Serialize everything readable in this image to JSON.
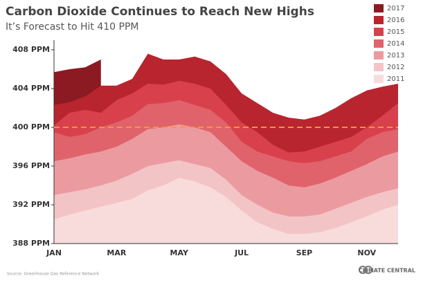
{
  "chart_data": {
    "type": "area",
    "title": "Carbon Dioxide Continues to Reach New Highs",
    "subtitle": "It’s Forecast to Hit 410 PPM",
    "source": "Source: Greenhouse Gas Reference Network",
    "credit": "CLIMATE CENTRAL",
    "categories": [
      "JAN",
      null,
      null,
      null,
      "MAR",
      null,
      null,
      null,
      "MAY",
      null,
      null,
      null,
      "JUL",
      null,
      null,
      null,
      "SEP",
      null,
      null,
      null,
      "NOV",
      null,
      null
    ],
    "series": [
      {
        "name": "2017",
        "color": "#8b1a22",
        "values": [
          405.7,
          406,
          406.2,
          407,
          null,
          null,
          null,
          null,
          null,
          null,
          null,
          null,
          null,
          null,
          null,
          null,
          null,
          null,
          null,
          null,
          null,
          null,
          null
        ]
      },
      {
        "name": "2016",
        "color": "#b8252f",
        "values": [
          402.3,
          402.6,
          403.2,
          404.3,
          404.3,
          405,
          407.6,
          407,
          407,
          407.3,
          406.8,
          405.5,
          403.5,
          402.5,
          401.5,
          401,
          400.8,
          401.2,
          402,
          403,
          403.8,
          404.2,
          404.5
        ]
      },
      {
        "name": "2015",
        "color": "#d8414c",
        "values": [
          400.2,
          401.5,
          401.8,
          401.5,
          402.8,
          403.5,
          404.5,
          404.4,
          404.8,
          404.5,
          404,
          402.3,
          400.5,
          399.5,
          398.2,
          397.4,
          397.5,
          398,
          398.5,
          399,
          400,
          401.2,
          402.5
        ]
      },
      {
        "name": "2014",
        "color": "#e0636b",
        "values": [
          399.5,
          399,
          399.3,
          400,
          400.5,
          401.2,
          402.4,
          402.5,
          402.8,
          402.3,
          401.8,
          400.5,
          398.5,
          397.5,
          397,
          396.5,
          396.3,
          396.5,
          397,
          397.5,
          398.8,
          399.5,
          399.8
        ]
      },
      {
        "name": "2013",
        "color": "#eb9ba0",
        "values": [
          396.5,
          396.8,
          397.2,
          397.5,
          398,
          398.8,
          399.8,
          400,
          400.3,
          400,
          399.5,
          398,
          396.5,
          395.5,
          394.8,
          394,
          393.8,
          394.2,
          394.8,
          395.5,
          396.2,
          397,
          397.5
        ]
      },
      {
        "name": "2012",
        "color": "#f3c4c6",
        "values": [
          393,
          393.3,
          393.6,
          394,
          394.5,
          395.2,
          396,
          396.3,
          396.6,
          396.2,
          395.8,
          394.6,
          393,
          392,
          391.2,
          390.8,
          390.8,
          391,
          391.6,
          392.2,
          392.8,
          393.3,
          393.7
        ]
      },
      {
        "name": "2011",
        "color": "#f8dcdc",
        "values": [
          390.5,
          391,
          391.4,
          391.8,
          392.2,
          392.6,
          393.5,
          394,
          394.8,
          394.4,
          393.8,
          392.8,
          391.4,
          390.2,
          389.5,
          389,
          389,
          389.2,
          389.6,
          390.2,
          390.8,
          391.5,
          392
        ]
      }
    ],
    "ylim": [
      388,
      409
    ],
    "yticks": [
      {
        "value": 388,
        "label": "388 PPM"
      },
      {
        "value": 392,
        "label": "392 PPM"
      },
      {
        "value": 396,
        "label": "396 PPM"
      },
      {
        "value": 400,
        "label": "400 PPM"
      },
      {
        "value": 404,
        "label": "404 PPM"
      },
      {
        "value": 408,
        "label": "408 PPM"
      }
    ],
    "reference_line": {
      "value": 400,
      "color": "#f0954a"
    },
    "legend": "top-right"
  }
}
